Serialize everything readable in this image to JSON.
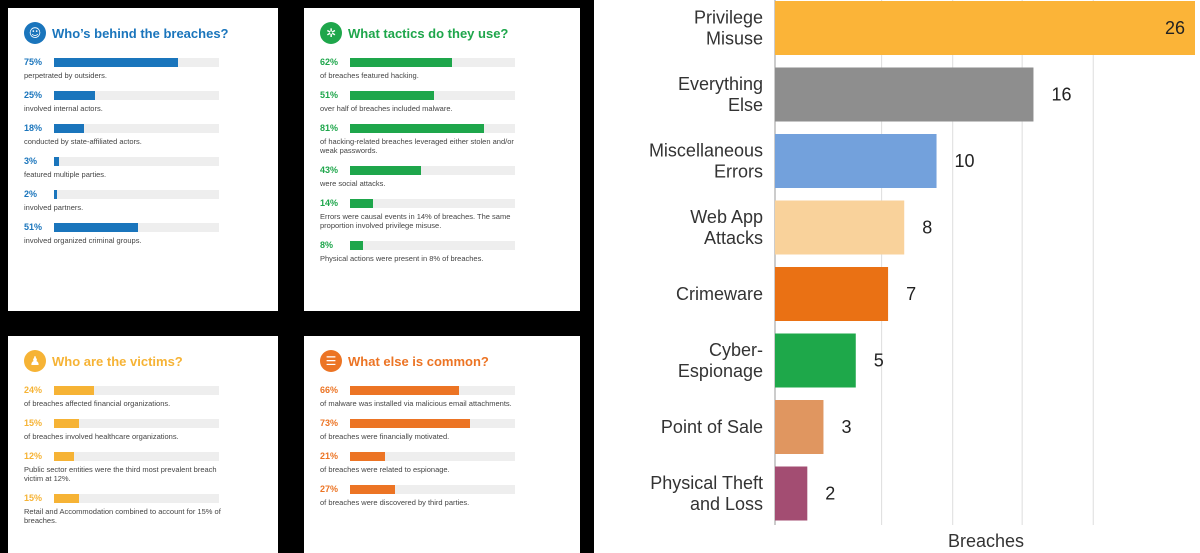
{
  "infographic": {
    "cards": [
      {
        "title": "Who’s behind the breaches?",
        "color": "#1a75bc",
        "icon": "person-icon",
        "stats": [
          {
            "pct": "75%",
            "value": 75,
            "desc": "perpetrated by outsiders."
          },
          {
            "pct": "25%",
            "value": 25,
            "desc": "involved internal actors."
          },
          {
            "pct": "18%",
            "value": 18,
            "desc": "conducted by state-affiliated actors."
          },
          {
            "pct": "3%",
            "value": 3,
            "desc": "featured multiple parties."
          },
          {
            "pct": "2%",
            "value": 2,
            "desc": "involved partners."
          },
          {
            "pct": "51%",
            "value": 51,
            "desc": "involved organized criminal groups."
          }
        ]
      },
      {
        "title": "What tactics do they use?",
        "color": "#1ea64b",
        "icon": "network-icon",
        "stats": [
          {
            "pct": "62%",
            "value": 62,
            "desc": "of breaches featured hacking."
          },
          {
            "pct": "51%",
            "value": 51,
            "desc": "over half of breaches included malware."
          },
          {
            "pct": "81%",
            "value": 81,
            "desc": "of hacking-related breaches leveraged either stolen and/or weak passwords."
          },
          {
            "pct": "43%",
            "value": 43,
            "desc": "were social attacks."
          },
          {
            "pct": "14%",
            "value": 14,
            "desc": "Errors were causal events in 14% of breaches. The same proportion involved privilege misuse."
          },
          {
            "pct": "8%",
            "value": 8,
            "desc": "Physical actions were present in 8% of breaches."
          }
        ]
      },
      {
        "title": "Who are the victims?",
        "color": "#f6b335",
        "icon": "victim-icon",
        "stats": [
          {
            "pct": "24%",
            "value": 24,
            "desc": "of breaches affected financial organizations."
          },
          {
            "pct": "15%",
            "value": 15,
            "desc": "of breaches involved healthcare organizations."
          },
          {
            "pct": "12%",
            "value": 12,
            "desc": "Public sector entities were the third most prevalent breach victim at 12%."
          },
          {
            "pct": "15%",
            "value": 15,
            "desc": "Retail and Accommodation combined to account for 15% of breaches."
          }
        ]
      },
      {
        "title": "What else is common?",
        "color": "#ec7424",
        "icon": "list-icon",
        "stats": [
          {
            "pct": "66%",
            "value": 66,
            "desc": "of malware was installed via malicious email attachments."
          },
          {
            "pct": "73%",
            "value": 73,
            "desc": "of breaches were financially motivated."
          },
          {
            "pct": "21%",
            "value": 21,
            "desc": "of breaches were related to espionage."
          },
          {
            "pct": "27%",
            "value": 27,
            "desc": "of breaches were discovered by third parties."
          }
        ]
      }
    ]
  },
  "chart_data": {
    "type": "bar",
    "orientation": "horizontal",
    "categories": [
      [
        "Privilege",
        "Misuse"
      ],
      [
        "Everything",
        "Else"
      ],
      [
        "Miscellaneous",
        "Errors"
      ],
      [
        "Web App",
        "Attacks"
      ],
      [
        "Crimeware"
      ],
      [
        "Cyber-",
        "Espionage"
      ],
      [
        "Point of Sale"
      ],
      [
        "Physical Theft",
        "and Loss"
      ]
    ],
    "values": [
      26,
      16,
      10,
      8,
      7,
      5,
      3,
      2
    ],
    "colors": [
      "#fbb438",
      "#8e8e8e",
      "#73a1dc",
      "#f9d29b",
      "#ea7114",
      "#1ea84a",
      "#e09660",
      "#a34d72"
    ],
    "xlabel": "Breaches",
    "xlim": [
      0,
      26
    ],
    "grid": true
  }
}
